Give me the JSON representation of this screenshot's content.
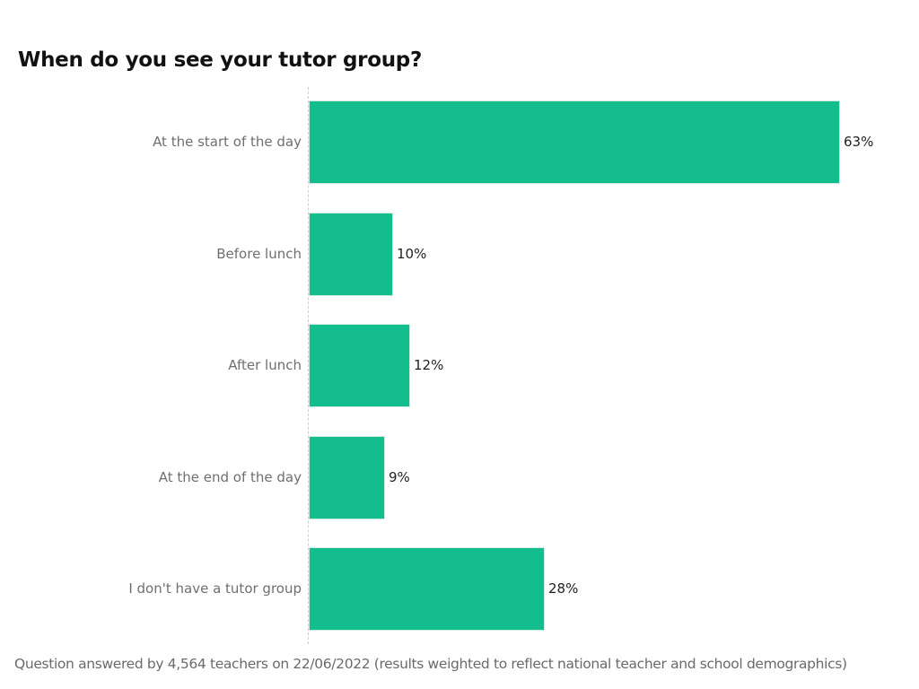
{
  "title": "When do you see your tutor group?",
  "footnote": "Question answered by 4,564 teachers on 22/06/2022 (results weighted to reflect national teacher and school demographics)",
  "colors": {
    "bar": "#14bd8e",
    "title": "#111111",
    "label": "#6f6f6f"
  },
  "rows": [
    {
      "label": "At the start of the day",
      "value_label": "63%"
    },
    {
      "label": "Before lunch",
      "value_label": "10%"
    },
    {
      "label": "After lunch",
      "value_label": "12%"
    },
    {
      "label": "At the end of the day",
      "value_label": "9%"
    },
    {
      "label": "I don't have a tutor group",
      "value_label": "28%"
    }
  ],
  "chart_data": {
    "type": "bar",
    "orientation": "horizontal",
    "title": "When do you see your tutor group?",
    "categories": [
      "At the start of the day",
      "Before lunch",
      "After lunch",
      "At the end of the day",
      "I don't have a tutor group"
    ],
    "values": [
      63,
      10,
      12,
      9,
      28
    ],
    "unit": "%",
    "xlabel": "",
    "ylabel": "",
    "xlim": [
      0,
      63
    ],
    "grid": false,
    "legend": null,
    "data_labels": true,
    "annotations": [
      "Question answered by 4,564 teachers on 22/06/2022 (results weighted to reflect national teacher and school demographics)"
    ]
  }
}
